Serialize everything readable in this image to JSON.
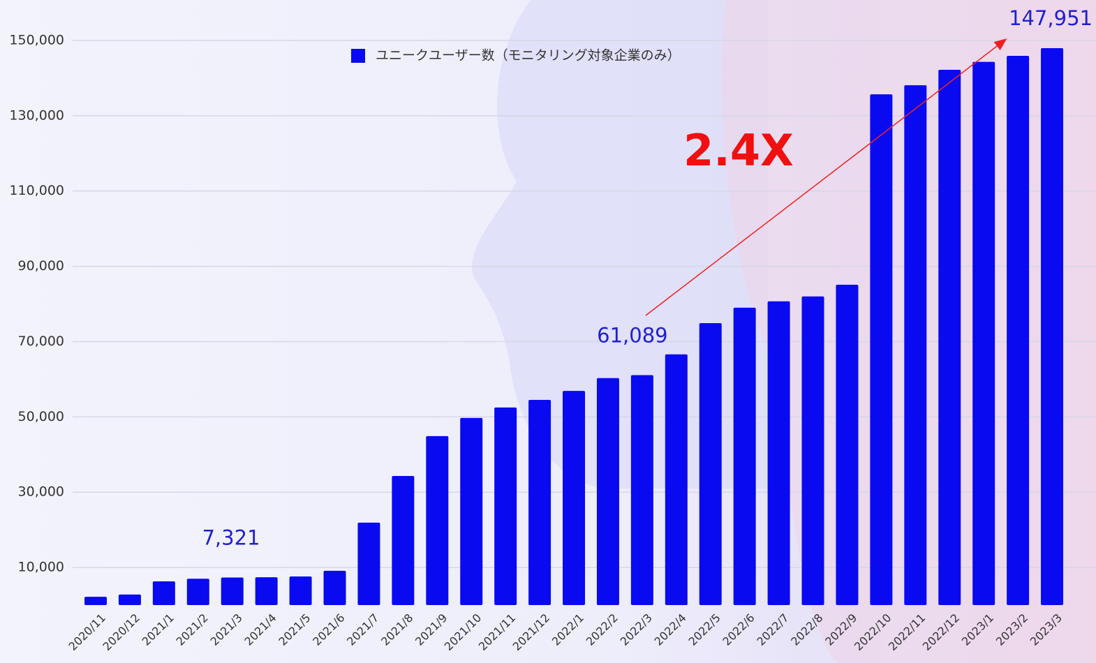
{
  "chart_data": {
    "type": "bar",
    "categories": [
      "2020/11",
      "2020/12",
      "2021/1",
      "2021/2",
      "2021/3",
      "2021/4",
      "2021/5",
      "2021/6",
      "2021/7",
      "2021/8",
      "2021/9",
      "2021/10",
      "2021/11",
      "2021/12",
      "2022/1",
      "2022/2",
      "2022/3",
      "2022/4",
      "2022/5",
      "2022/6",
      "2022/7",
      "2022/8",
      "2022/9",
      "2022/10",
      "2022/11",
      "2022/12",
      "2023/1",
      "2023/2",
      "2023/3"
    ],
    "series": [
      {
        "name": "ユニークユーザー数（モニタリング対象企業のみ）",
        "color": "#0a0af0",
        "values": [
          2200,
          2800,
          6300,
          7000,
          7321,
          7400,
          7600,
          9100,
          21900,
          34300,
          44900,
          49700,
          52500,
          54500,
          56900,
          60300,
          61089,
          66600,
          74900,
          79000,
          80700,
          82000,
          85100,
          135700,
          138100,
          142200,
          144300,
          145900,
          147951
        ],
        "value_labels": [
          null,
          null,
          null,
          null,
          "7,321",
          null,
          null,
          null,
          null,
          null,
          null,
          null,
          null,
          null,
          null,
          null,
          "61,089",
          null,
          null,
          null,
          null,
          null,
          null,
          null,
          null,
          null,
          null,
          null,
          "147,951"
        ]
      }
    ],
    "annotation": "2.4X",
    "ylim": [
      0,
      160000
    ],
    "yticks": [
      {
        "value": 10000,
        "label": "10,000"
      },
      {
        "value": 30000,
        "label": "30,000"
      },
      {
        "value": 50000,
        "label": "50,000"
      },
      {
        "value": 70000,
        "label": "70,000"
      },
      {
        "value": 90000,
        "label": "90,000"
      },
      {
        "value": 110000,
        "label": "110,000"
      },
      {
        "value": 130000,
        "label": "130,000"
      },
      {
        "value": 150000,
        "label": "150,000"
      }
    ],
    "grid": true
  }
}
